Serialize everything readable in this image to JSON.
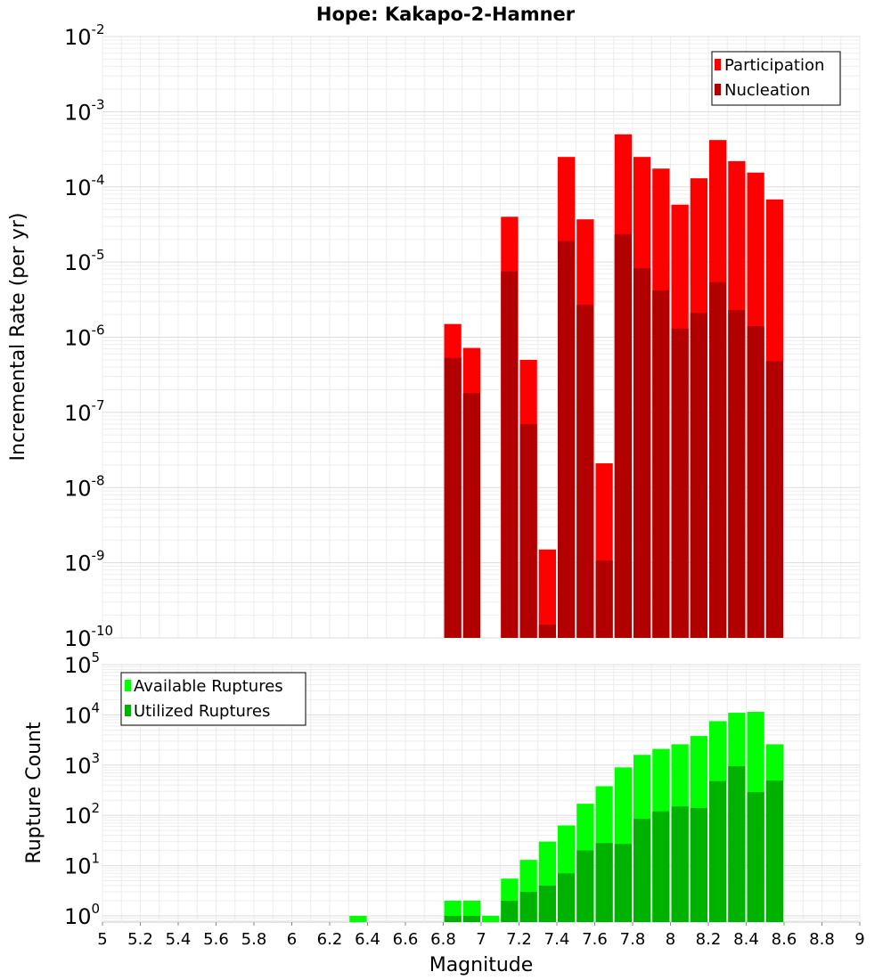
{
  "title": "Hope: Kakapo-2-Hamner",
  "chart_data": [
    {
      "type": "bar",
      "ylabel": "Incremental Rate (per yr)",
      "yscale": "log",
      "ylim": [
        1e-10,
        0.01
      ],
      "xlim": [
        5,
        9
      ],
      "legend_position": "top-right",
      "bar_width": 0.1,
      "series": [
        {
          "name": "Participation",
          "color": "#ff0000"
        },
        {
          "name": "Nucleation",
          "color": "#b20000"
        }
      ],
      "x": [
        6.85,
        6.95,
        7.15,
        7.25,
        7.35,
        7.45,
        7.55,
        7.65,
        7.75,
        7.85,
        7.95,
        8.05,
        8.15,
        8.25,
        8.35,
        8.45,
        8.55
      ],
      "participation": [
        1.5e-06,
        7.2e-07,
        4e-05,
        5e-07,
        1.5e-09,
        0.00025,
        3.7e-05,
        2.1e-08,
        0.0005,
        0.00025,
        0.000175,
        5.8e-05,
        0.00013,
        0.00042,
        0.00022,
        0.000155,
        6.8e-05
      ],
      "nucleation": [
        5.3e-07,
        1.8e-07,
        7.5e-06,
        7e-08,
        1.5e-10,
        1.9e-05,
        2.7e-06,
        1.07e-09,
        2.35e-05,
        8.3e-06,
        4.2e-06,
        1.3e-06,
        2.1e-06,
        5.4e-06,
        2.3e-06,
        1.4e-06,
        4.8e-07
      ]
    },
    {
      "type": "bar",
      "ylabel": "Rupture Count",
      "xlabel": "Magnitude",
      "yscale": "log",
      "ylim": [
        0.75,
        100000.0
      ],
      "xlim": [
        5,
        9
      ],
      "legend_position": "top-left",
      "bar_width": 0.1,
      "series": [
        {
          "name": "Available Ruptures",
          "color": "#00ff00"
        },
        {
          "name": "Utilized Ruptures",
          "color": "#00b200"
        }
      ],
      "x": [
        6.35,
        6.85,
        6.95,
        7.05,
        7.15,
        7.25,
        7.35,
        7.45,
        7.55,
        7.65,
        7.75,
        7.85,
        7.95,
        8.05,
        8.15,
        8.25,
        8.35,
        8.45,
        8.55
      ],
      "available": [
        1,
        2,
        2,
        1,
        5.5,
        13,
        30,
        63,
        170,
        380,
        900,
        1600,
        2100,
        2600,
        3800,
        7500,
        11000,
        11500,
        2600
      ],
      "utilized": [
        0,
        1,
        1,
        0,
        2,
        3,
        4,
        7,
        20,
        28,
        27,
        85,
        120,
        150,
        140,
        480,
        950,
        290,
        490
      ]
    }
  ],
  "axes": {
    "top_y_ticks": [
      {
        "base": "10",
        "exp": "-2"
      },
      {
        "base": "10",
        "exp": "-3"
      },
      {
        "base": "10",
        "exp": "-4"
      },
      {
        "base": "10",
        "exp": "-5"
      },
      {
        "base": "10",
        "exp": "-6"
      },
      {
        "base": "10",
        "exp": "-7"
      },
      {
        "base": "10",
        "exp": "-8"
      },
      {
        "base": "10",
        "exp": "-9"
      },
      {
        "base": "10",
        "exp": "-10"
      }
    ],
    "bottom_y_ticks": [
      {
        "base": "10",
        "exp": "5"
      },
      {
        "base": "10",
        "exp": "4"
      },
      {
        "base": "10",
        "exp": "3"
      },
      {
        "base": "10",
        "exp": "2"
      },
      {
        "base": "10",
        "exp": "1"
      },
      {
        "base": "10",
        "exp": "0"
      }
    ],
    "x_ticks": [
      "5",
      "5.2",
      "5.4",
      "5.6",
      "5.8",
      "6",
      "6.2",
      "6.4",
      "6.6",
      "6.8",
      "7",
      "7.2",
      "7.4",
      "7.6",
      "7.8",
      "8",
      "8.2",
      "8.4",
      "8.6",
      "8.8",
      "9"
    ]
  }
}
